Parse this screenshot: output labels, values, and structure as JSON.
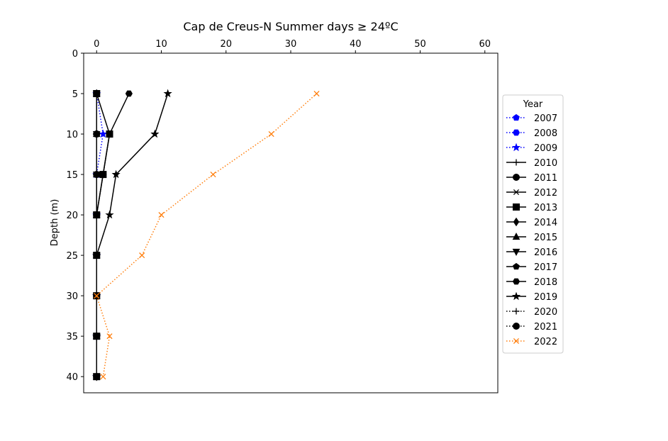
{
  "chart_data": {
    "type": "line",
    "title": "Cap de Creus-N Summer days ≥ 24ºC",
    "xlabel": "",
    "ylabel": "Depth (m)",
    "x_axis_position": "top",
    "y_inverted": true,
    "xlim": [
      -2,
      62
    ],
    "ylim": [
      42,
      0
    ],
    "xticks": [
      0,
      10,
      20,
      30,
      40,
      50,
      60
    ],
    "yticks": [
      0,
      5,
      10,
      15,
      20,
      25,
      30,
      35,
      40
    ],
    "grid": false,
    "legend": {
      "title": "Year",
      "placement": "right-center"
    },
    "depths": [
      5,
      10,
      15,
      20,
      25,
      30,
      35,
      40
    ],
    "series": [
      {
        "name": "2007",
        "color": "#0000ff",
        "linestyle": "dotted",
        "marker": "pentagon",
        "values": [
          0,
          0,
          0,
          0,
          0,
          0,
          0,
          0
        ]
      },
      {
        "name": "2008",
        "color": "#0000ff",
        "linestyle": "dotted",
        "marker": "hexagon",
        "values": [
          0,
          0,
          0,
          0,
          0,
          0,
          0,
          0
        ]
      },
      {
        "name": "2009",
        "color": "#0000ff",
        "linestyle": "dotted",
        "marker": "star",
        "values": [
          0,
          1,
          0,
          0,
          0,
          0,
          0,
          0
        ]
      },
      {
        "name": "2010",
        "color": "#000000",
        "linestyle": "solid",
        "marker": "plus",
        "values": [
          0,
          0,
          0,
          0,
          0,
          0,
          0,
          0
        ]
      },
      {
        "name": "2011",
        "color": "#000000",
        "linestyle": "solid",
        "marker": "circle",
        "values": [
          0,
          0,
          0,
          0,
          0,
          0,
          0,
          0
        ]
      },
      {
        "name": "2012",
        "color": "#000000",
        "linestyle": "solid",
        "marker": "x",
        "values": [
          0,
          0,
          0,
          0,
          0,
          0,
          0,
          0
        ]
      },
      {
        "name": "2013",
        "color": "#000000",
        "linestyle": "solid",
        "marker": "square",
        "values": [
          0,
          2,
          1,
          0,
          0,
          0,
          0,
          0
        ]
      },
      {
        "name": "2014",
        "color": "#000000",
        "linestyle": "solid",
        "marker": "diamond",
        "values": [
          0,
          0,
          0,
          0,
          0,
          0,
          0,
          0
        ]
      },
      {
        "name": "2015",
        "color": "#000000",
        "linestyle": "solid",
        "marker": "triangle-up",
        "values": [
          0,
          0,
          0,
          0,
          0,
          0,
          0,
          0
        ]
      },
      {
        "name": "2016",
        "color": "#000000",
        "linestyle": "solid",
        "marker": "triangle-down",
        "values": [
          0,
          0,
          0,
          0,
          0,
          0,
          0,
          0
        ]
      },
      {
        "name": "2017",
        "color": "#000000",
        "linestyle": "solid",
        "marker": "pentagon",
        "values": [
          0,
          0,
          0,
          0,
          0,
          0,
          0,
          0
        ]
      },
      {
        "name": "2018",
        "color": "#000000",
        "linestyle": "solid",
        "marker": "hexagon",
        "values": [
          5,
          2,
          1,
          0,
          0,
          0,
          0,
          0
        ]
      },
      {
        "name": "2019",
        "color": "#000000",
        "linestyle": "solid",
        "marker": "star",
        "values": [
          11,
          9,
          3,
          2,
          0,
          0,
          0,
          0
        ]
      },
      {
        "name": "2020",
        "color": "#000000",
        "linestyle": "dotted",
        "marker": "plus",
        "values": [
          0,
          0,
          0,
          0,
          0,
          0,
          0,
          0
        ]
      },
      {
        "name": "2021",
        "color": "#000000",
        "linestyle": "dotted",
        "marker": "circle",
        "values": [
          0,
          0,
          0,
          0,
          0,
          0,
          0,
          0
        ]
      },
      {
        "name": "2022",
        "color": "#ff7f0e",
        "linestyle": "dotted",
        "marker": "x",
        "values": [
          34,
          27,
          18,
          10,
          7,
          0,
          2,
          1
        ]
      }
    ]
  }
}
